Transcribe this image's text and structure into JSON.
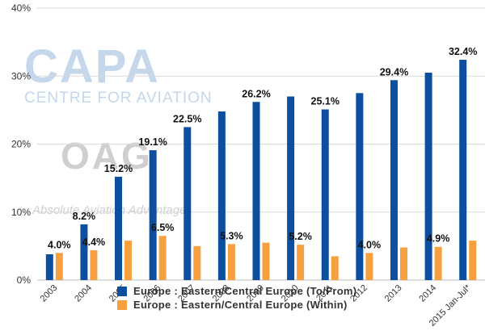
{
  "colors": {
    "series1": "#0b4f9e",
    "series2": "#f7a040",
    "grid": "#d9d9d9"
  },
  "watermark": {
    "brand1": "CAPA",
    "brand1_sub": "CENTRE FOR AVIATION",
    "brand2": "OAG",
    "brand2_sub": "Absolute Aviation Advantage"
  },
  "chart_data": {
    "type": "bar",
    "categories": [
      "2003",
      "2004",
      "2005",
      "2006",
      "2007",
      "2008",
      "2009",
      "2010",
      "2011",
      "2012",
      "2013",
      "2014",
      "2015 Jan-Jul*"
    ],
    "ylim": [
      0,
      40
    ],
    "yticks": [
      "0%",
      "10%",
      "20%",
      "30%",
      "40%"
    ],
    "grid": true,
    "legend_position": "bottom",
    "series": [
      {
        "name": "Europe : Eastern/Central Europe (To/From)",
        "values": [
          3.8,
          8.2,
          15.2,
          19.1,
          22.5,
          24.8,
          26.2,
          27.0,
          25.1,
          27.5,
          29.4,
          30.5,
          32.4
        ],
        "labels": [
          "",
          "8.2%",
          "15.2%",
          "19.1%",
          "22.5%",
          "",
          "26.2%",
          "",
          "25.1%",
          "",
          "29.4%",
          "",
          "32.4%"
        ]
      },
      {
        "name": "Europe : Eastern/Central Europe (Within)",
        "values": [
          4.0,
          4.4,
          5.8,
          6.5,
          5.0,
          5.3,
          5.5,
          5.2,
          3.5,
          4.0,
          4.8,
          4.9,
          5.8
        ],
        "labels": [
          "4.0%",
          "4.4%",
          "",
          "6.5%",
          "",
          "5.3%",
          "",
          "5.2%",
          "",
          "4.0%",
          "",
          "4.9%",
          ""
        ]
      }
    ]
  }
}
